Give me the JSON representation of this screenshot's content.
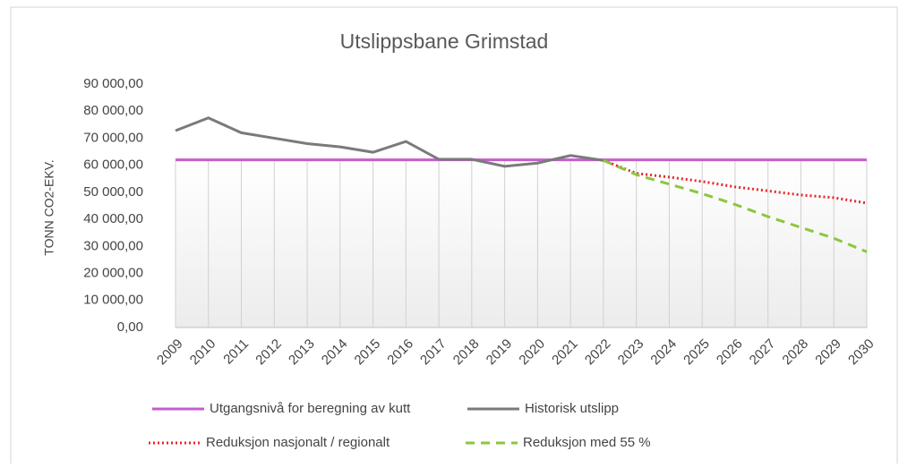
{
  "chart_data": {
    "type": "line",
    "title": "Utslippsbane Grimstad",
    "y_label": "TONN CO2-EKV.",
    "categories": [
      "2009",
      "2010",
      "2011",
      "2012",
      "2013",
      "2014",
      "2015",
      "2016",
      "2017",
      "2018",
      "2019",
      "2020",
      "2021",
      "2022",
      "2023",
      "2024",
      "2025",
      "2026",
      "2027",
      "2028",
      "2029",
      "2030"
    ],
    "ylim": [
      0,
      90000
    ],
    "yticks": [
      {
        "value": 0,
        "label": "0,00"
      },
      {
        "value": 10000,
        "label": "10 000,00"
      },
      {
        "value": 20000,
        "label": "20 000,00"
      },
      {
        "value": 30000,
        "label": "30 000,00"
      },
      {
        "value": 40000,
        "label": "40 000,00"
      },
      {
        "value": 50000,
        "label": "50 000,00"
      },
      {
        "value": 60000,
        "label": "60 000,00"
      },
      {
        "value": 70000,
        "label": "70 000,00"
      },
      {
        "value": 80000,
        "label": "80 000,00"
      },
      {
        "value": 90000,
        "label": "90 000,00"
      }
    ],
    "grid": "vertical",
    "series": [
      {
        "name": "Utgangsnivå for beregning av kutt",
        "color": "#c45ccf",
        "style": "solid",
        "values": [
          62000,
          62000,
          62000,
          62000,
          62000,
          62000,
          62000,
          62000,
          62000,
          62000,
          62000,
          62000,
          62000,
          62000,
          62000,
          62000,
          62000,
          62000,
          62000,
          62000,
          62000,
          62000
        ]
      },
      {
        "name": "Historisk utslipp",
        "color": "#7a7a7a",
        "style": "solid",
        "values": [
          72800,
          77500,
          72000,
          70000,
          68000,
          66800,
          64800,
          68800,
          62200,
          62200,
          59600,
          60800,
          63600,
          61800,
          null,
          null,
          null,
          null,
          null,
          null,
          null,
          null
        ]
      },
      {
        "name": "Reduksjon nasjonalt / regionalt",
        "color": "#e8262a",
        "style": "dotted",
        "values": [
          null,
          null,
          null,
          null,
          null,
          null,
          null,
          null,
          null,
          null,
          null,
          null,
          null,
          61800,
          57000,
          55600,
          54000,
          52000,
          50500,
          49000,
          48000,
          46000
        ]
      },
      {
        "name": "Reduksjon med 55 %",
        "color": "#8cc63f",
        "style": "dashed",
        "values": [
          null,
          null,
          null,
          null,
          null,
          null,
          null,
          null,
          null,
          null,
          null,
          null,
          null,
          61800,
          56500,
          53000,
          49500,
          45500,
          41000,
          37000,
          33000,
          28000
        ]
      }
    ]
  }
}
